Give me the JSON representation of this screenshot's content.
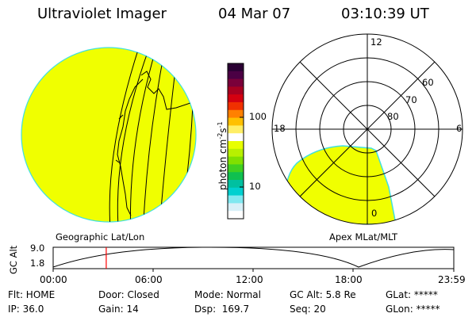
{
  "header": {
    "instrument": "Ultraviolet Imager",
    "date": "04 Mar 07",
    "time": "03:10:39 UT"
  },
  "colors": {
    "fill_yellow": "#f0ff00",
    "edge_cyan": "#40e0e0",
    "trace_red": "#ff0000",
    "background": "#ffffff",
    "line": "#000000"
  },
  "colorbar": {
    "label": "photon cm",
    "label_sup1": "-2",
    "label_mid": "s",
    "label_sup2": "-1",
    "ticks": [
      "100",
      "10"
    ],
    "scale": "log",
    "colors_top_to_bottom": [
      "#2a0033",
      "#4b0044",
      "#7a003a",
      "#a80020",
      "#d40010",
      "#f03000",
      "#ff8000",
      "#ffc000",
      "#ffee66",
      "#ffffff",
      "#e8ff00",
      "#b8f000",
      "#80e000",
      "#40d020",
      "#10c050",
      "#00c0a0",
      "#00d0d0",
      "#80e8f0",
      "#d8f0f8",
      "#ffffff"
    ]
  },
  "left_panel": {
    "label": "Geographic Lat/Lon"
  },
  "right_panel": {
    "label": "Apex MLat/MLT",
    "mlt_labels": {
      "top": "12",
      "left": "18",
      "right": "6",
      "bottom": "0"
    },
    "lat_labels": [
      "60",
      "70",
      "80"
    ]
  },
  "altitude_plot": {
    "ylabel": "GC Alt",
    "yticks": [
      "9.0",
      "1.8"
    ],
    "xticks": [
      "00:00",
      "06:00",
      "12:00",
      "18:00",
      "23:59"
    ],
    "current_time_hours": 3.18
  },
  "footer": {
    "flt": "Flt: HOME",
    "ip": "IP: 36.0",
    "door": "Door: Closed",
    "gain": "Gain: 14",
    "mode": "Mode: Normal",
    "dsp": "Dsp:  169.7",
    "gcalt": "GC Alt: 5.8 Re",
    "seq": "Seq: 20",
    "glat": "GLat: *****",
    "glon": "GLon: *****"
  }
}
